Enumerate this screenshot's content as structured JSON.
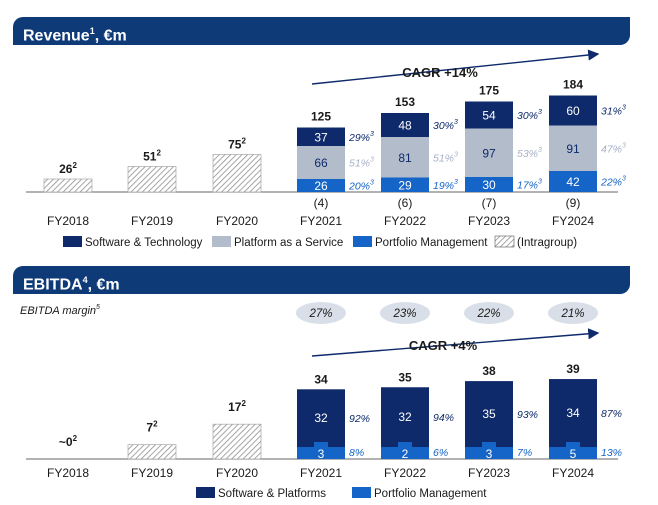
{
  "revenue_section": {
    "title": "Revenue",
    "title_sup": "1",
    "title_suffix": ", €m"
  },
  "ebitda_section": {
    "title": "EBITDA",
    "title_sup": "4",
    "title_suffix": ", €m",
    "margin_label": "EBITDA margin",
    "margin_label_sup": "5"
  },
  "colors": {
    "software": "#0e2a6b",
    "platform": "#b3bccb",
    "portfolio": "#1565c8",
    "margin_bubble": "#d9dfe8",
    "banner": "#0e3a78"
  },
  "chart_data": [
    {
      "type": "bar",
      "name": "revenue",
      "categories": [
        "FY2018",
        "FY2019",
        "FY2020",
        "FY2021",
        "FY2022",
        "FY2023",
        "FY2024"
      ],
      "series": [
        {
          "name": "Software & Technology",
          "values": [
            null,
            null,
            null,
            37,
            48,
            54,
            60
          ],
          "shares": [
            "",
            "",
            "",
            "29%",
            "30%",
            "30%",
            "31%"
          ]
        },
        {
          "name": "Platform as a Service",
          "values": [
            null,
            null,
            null,
            66,
            81,
            97,
            91
          ],
          "shares": [
            "",
            "",
            "",
            "51%",
            "51%",
            "53%",
            "47%"
          ]
        },
        {
          "name": "Portfolio Management",
          "values": [
            null,
            null,
            null,
            26,
            29,
            30,
            42
          ],
          "shares": [
            "",
            "",
            "",
            "20%",
            "19%",
            "17%",
            "22%"
          ]
        }
      ],
      "share_sup": "3",
      "pre_values": [
        26,
        51,
        75,
        null,
        null,
        null,
        null
      ],
      "pre_sup": "2",
      "totals": [
        null,
        null,
        null,
        125,
        153,
        175,
        184
      ],
      "intragroup": [
        "",
        "",
        "",
        "(4)",
        "(6)",
        "(7)",
        "(9)"
      ],
      "legend": [
        "Software & Technology",
        "Platform as a Service",
        "Portfolio Management",
        "(Intragroup)"
      ],
      "cagr": "CAGR +14%"
    },
    {
      "type": "bar",
      "name": "ebitda",
      "categories": [
        "FY2018",
        "FY2019",
        "FY2020",
        "FY2021",
        "FY2022",
        "FY2023",
        "FY2024"
      ],
      "series": [
        {
          "name": "Software & Platforms",
          "values": [
            null,
            null,
            null,
            32,
            32,
            35,
            34
          ],
          "shares": [
            "",
            "",
            "",
            "92%",
            "94%",
            "93%",
            "87%"
          ]
        },
        {
          "name": "Portfolio Management",
          "values": [
            null,
            null,
            null,
            3,
            2,
            3,
            5
          ],
          "shares": [
            "",
            "",
            "",
            "8%",
            "6%",
            "7%",
            "13%"
          ]
        }
      ],
      "pre_values": [
        0,
        7,
        17,
        null,
        null,
        null,
        null
      ],
      "pre_labels": [
        "~0",
        "7",
        "17",
        "",
        "",
        "",
        ""
      ],
      "pre_sup": "2",
      "totals": [
        null,
        null,
        null,
        34,
        35,
        38,
        39
      ],
      "margins": [
        "",
        "",
        "",
        "27%",
        "23%",
        "22%",
        "21%"
      ],
      "legend": [
        "Software & Platforms",
        "Portfolio Management"
      ],
      "cagr": "CAGR +4%"
    }
  ]
}
